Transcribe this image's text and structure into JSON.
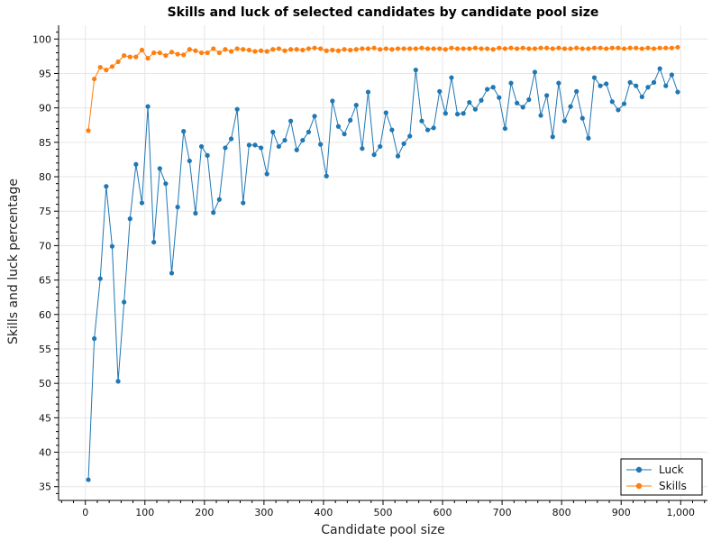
{
  "chart_data": {
    "type": "line",
    "title": "Skills and luck of selected candidates by candidate pool size",
    "xlabel": "Candidate pool size",
    "ylabel": "Skills and luck percentage",
    "xlim": [
      -45,
      1045
    ],
    "ylim": [
      33,
      102
    ],
    "xticks": [
      0,
      100,
      200,
      300,
      400,
      500,
      600,
      700,
      800,
      900,
      1000
    ],
    "xtick_labels": [
      "0",
      "100",
      "200",
      "300",
      "400",
      "500",
      "600",
      "700",
      "800",
      "900",
      "1,000"
    ],
    "yticks": [
      35,
      40,
      45,
      50,
      55,
      60,
      65,
      70,
      75,
      80,
      85,
      90,
      95,
      100
    ],
    "ytick_labels": [
      "35",
      "40",
      "45",
      "50",
      "55",
      "60",
      "65",
      "70",
      "75",
      "80",
      "85",
      "90",
      "95",
      "100"
    ],
    "grid": true,
    "legend_position": "bottom-right",
    "x": [
      5,
      15,
      25,
      35,
      45,
      55,
      65,
      75,
      85,
      95,
      105,
      115,
      125,
      135,
      145,
      155,
      165,
      175,
      185,
      195,
      205,
      215,
      225,
      235,
      245,
      255,
      265,
      275,
      285,
      295,
      305,
      315,
      325,
      335,
      345,
      355,
      365,
      375,
      385,
      395,
      405,
      415,
      425,
      435,
      445,
      455,
      465,
      475,
      485,
      495,
      505,
      515,
      525,
      535,
      545,
      555,
      565,
      575,
      585,
      595,
      605,
      615,
      625,
      635,
      645,
      655,
      665,
      675,
      685,
      695,
      705,
      715,
      725,
      735,
      745,
      755,
      765,
      775,
      785,
      795,
      805,
      815,
      825,
      835,
      845,
      855,
      865,
      875,
      885,
      895,
      905,
      915,
      925,
      935,
      945,
      955,
      965,
      975,
      985,
      995
    ],
    "series": [
      {
        "name": "Luck",
        "color": "#1f77b4",
        "values": [
          36.0,
          56.5,
          65.2,
          78.6,
          69.9,
          50.3,
          61.8,
          73.9,
          81.8,
          76.2,
          90.2,
          70.5,
          81.2,
          79.0,
          66.0,
          75.6,
          86.6,
          82.3,
          74.7,
          84.4,
          83.1,
          74.8,
          76.7,
          84.2,
          85.5,
          89.8,
          76.2,
          84.6,
          84.6,
          84.2,
          80.4,
          86.5,
          84.4,
          85.3,
          88.1,
          83.9,
          85.3,
          86.5,
          88.8,
          84.7,
          80.1,
          91.0,
          87.3,
          86.2,
          88.2,
          90.4,
          84.1,
          92.3,
          83.2,
          84.4,
          89.3,
          86.8,
          83.0,
          84.8,
          85.9,
          95.5,
          88.1,
          86.8,
          87.1,
          92.4,
          89.2,
          94.4,
          89.1,
          89.2,
          90.8,
          89.8,
          91.1,
          92.7,
          93.0,
          91.5,
          87.0,
          93.6,
          90.7,
          90.1,
          91.2,
          95.2,
          88.9,
          91.8,
          85.8,
          93.6,
          88.1,
          90.2,
          92.4,
          88.5,
          85.6,
          94.4,
          93.2,
          93.5,
          90.9,
          89.7,
          90.6,
          93.7,
          93.2,
          91.6,
          93.0,
          93.7,
          95.7,
          93.2,
          94.8,
          92.3
        ]
      },
      {
        "name": "Skills",
        "color": "#ff7f0e",
        "values": [
          86.7,
          94.2,
          95.9,
          95.5,
          96.0,
          96.7,
          97.6,
          97.4,
          97.4,
          98.4,
          97.2,
          98.0,
          98.0,
          97.6,
          98.1,
          97.8,
          97.7,
          98.5,
          98.3,
          98.0,
          98.0,
          98.6,
          98.0,
          98.5,
          98.2,
          98.6,
          98.5,
          98.4,
          98.2,
          98.3,
          98.2,
          98.5,
          98.6,
          98.3,
          98.5,
          98.5,
          98.4,
          98.6,
          98.7,
          98.6,
          98.3,
          98.4,
          98.3,
          98.5,
          98.4,
          98.5,
          98.6,
          98.6,
          98.7,
          98.5,
          98.6,
          98.5,
          98.6,
          98.6,
          98.6,
          98.6,
          98.7,
          98.6,
          98.6,
          98.6,
          98.5,
          98.7,
          98.6,
          98.6,
          98.6,
          98.7,
          98.6,
          98.6,
          98.5,
          98.7,
          98.6,
          98.7,
          98.6,
          98.7,
          98.6,
          98.6,
          98.7,
          98.7,
          98.6,
          98.7,
          98.6,
          98.6,
          98.7,
          98.6,
          98.6,
          98.7,
          98.7,
          98.6,
          98.7,
          98.7,
          98.6,
          98.7,
          98.7,
          98.6,
          98.7,
          98.6,
          98.7,
          98.7,
          98.7,
          98.8
        ]
      }
    ]
  }
}
